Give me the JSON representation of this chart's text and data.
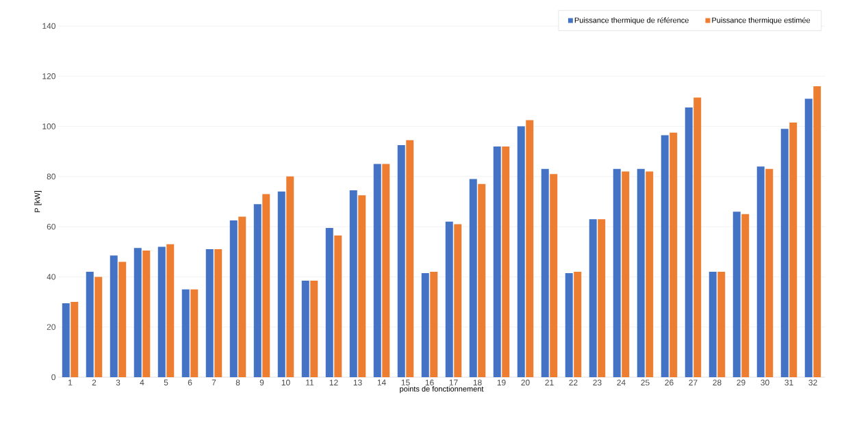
{
  "chart_data": {
    "type": "bar",
    "xlabel": "points de fonctionnement",
    "ylabel": "P [kW]",
    "categories": [
      "1",
      "2",
      "3",
      "4",
      "5",
      "6",
      "7",
      "8",
      "9",
      "10",
      "11",
      "12",
      "13",
      "14",
      "15",
      "16",
      "17",
      "18",
      "19",
      "20",
      "21",
      "22",
      "23",
      "24",
      "25",
      "26",
      "27",
      "28",
      "29",
      "30",
      "31",
      "32"
    ],
    "series": [
      {
        "name": "Puissance thermique de référence",
        "color": "#4472c4",
        "values": [
          29.5,
          42,
          48.5,
          51.5,
          52,
          35,
          51,
          62.5,
          69,
          74,
          38.5,
          59.5,
          74.5,
          85,
          92.5,
          41.5,
          62,
          79,
          92,
          100,
          83,
          41.5,
          63,
          83,
          83,
          96.5,
          107.5,
          42,
          66,
          84,
          99,
          111
        ]
      },
      {
        "name": "Puissance thermique estimée",
        "color": "#ed7d31",
        "values": [
          30,
          40,
          46,
          50.5,
          53,
          35,
          51,
          64,
          73,
          80,
          38.5,
          56.5,
          72.5,
          85,
          94.5,
          42,
          61,
          77,
          92,
          102.5,
          81,
          42,
          63,
          82,
          82,
          97.5,
          111.5,
          42,
          65,
          83,
          101.5,
          116
        ]
      }
    ],
    "ylim": [
      0,
      140
    ],
    "yticks": [
      0,
      20,
      40,
      60,
      80,
      100,
      120,
      140
    ],
    "grid": "y",
    "legend": "top right"
  }
}
